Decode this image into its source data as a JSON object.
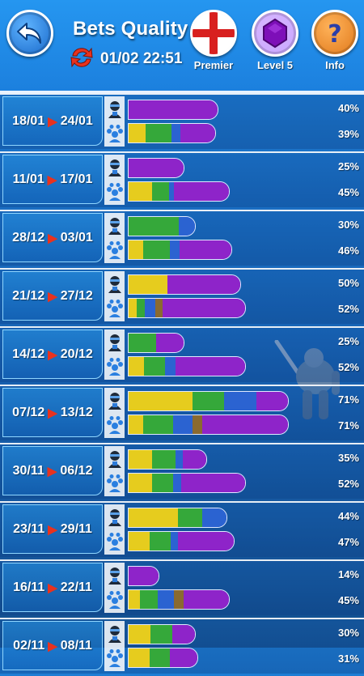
{
  "header": {
    "title": "Bets Quality",
    "datetime": "01/02 22:51",
    "buttons": {
      "back_icon": "back-arrow-icon",
      "league": "Premier",
      "league_icon": "england-flag-icon",
      "level": "Level 5",
      "level_icon": "purple-gem-icon",
      "info": "Info",
      "info_icon": "question-mark-icon",
      "refresh_icon": "refresh-icon"
    }
  },
  "legend_colors": {
    "yellow": "#e6cc1e",
    "green": "#35a83a",
    "blue": "#2b63d1",
    "brown": "#8a6a30",
    "purple": "#8e24c9"
  },
  "weeks": [
    {
      "from": "18/01",
      "to": "24/01",
      "user_pct": "40%",
      "crowd_pct": "39%",
      "user_bar": [
        {
          "c": "purple",
          "w": 100
        }
      ],
      "user_len": 0.4,
      "crowd_bar": [
        {
          "c": "yellow",
          "w": 20
        },
        {
          "c": "green",
          "w": 30
        },
        {
          "c": "blue",
          "w": 10
        },
        {
          "c": "purple",
          "w": 40
        }
      ],
      "crowd_len": 0.39
    },
    {
      "from": "11/01",
      "to": "17/01",
      "user_pct": "25%",
      "crowd_pct": "45%",
      "user_bar": [
        {
          "c": "purple",
          "w": 100
        }
      ],
      "user_len": 0.25,
      "crowd_bar": [
        {
          "c": "yellow",
          "w": 23
        },
        {
          "c": "green",
          "w": 17
        },
        {
          "c": "blue",
          "w": 5
        },
        {
          "c": "purple",
          "w": 55
        }
      ],
      "crowd_len": 0.45
    },
    {
      "from": "28/12",
      "to": "03/01",
      "user_pct": "30%",
      "crowd_pct": "46%",
      "user_bar": [
        {
          "c": "green",
          "w": 75
        },
        {
          "c": "blue",
          "w": 25
        }
      ],
      "user_len": 0.3,
      "crowd_bar": [
        {
          "c": "yellow",
          "w": 14
        },
        {
          "c": "green",
          "w": 26
        },
        {
          "c": "blue",
          "w": 10
        },
        {
          "c": "purple",
          "w": 50
        }
      ],
      "crowd_len": 0.46
    },
    {
      "from": "21/12",
      "to": "27/12",
      "user_pct": "50%",
      "crowd_pct": "52%",
      "user_bar": [
        {
          "c": "yellow",
          "w": 35
        },
        {
          "c": "purple",
          "w": 65
        }
      ],
      "user_len": 0.5,
      "crowd_bar": [
        {
          "c": "yellow",
          "w": 7
        },
        {
          "c": "green",
          "w": 7
        },
        {
          "c": "blue",
          "w": 9
        },
        {
          "c": "brown",
          "w": 6
        },
        {
          "c": "purple",
          "w": 71
        }
      ],
      "crowd_len": 0.52
    },
    {
      "from": "14/12",
      "to": "20/12",
      "user_pct": "25%",
      "crowd_pct": "52%",
      "user_bar": [
        {
          "c": "green",
          "w": 50
        },
        {
          "c": "purple",
          "w": 50
        }
      ],
      "user_len": 0.25,
      "crowd_bar": [
        {
          "c": "yellow",
          "w": 13
        },
        {
          "c": "green",
          "w": 18
        },
        {
          "c": "blue",
          "w": 9
        },
        {
          "c": "purple",
          "w": 60
        }
      ],
      "crowd_len": 0.52
    },
    {
      "from": "07/12",
      "to": "13/12",
      "user_pct": "71%",
      "crowd_pct": "71%",
      "user_bar": [
        {
          "c": "yellow",
          "w": 40
        },
        {
          "c": "green",
          "w": 20
        },
        {
          "c": "blue",
          "w": 20
        },
        {
          "c": "purple",
          "w": 20
        }
      ],
      "user_len": 0.71,
      "crowd_bar": [
        {
          "c": "yellow",
          "w": 9
        },
        {
          "c": "green",
          "w": 19
        },
        {
          "c": "blue",
          "w": 12
        },
        {
          "c": "brown",
          "w": 6
        },
        {
          "c": "purple",
          "w": 54
        }
      ],
      "crowd_len": 0.71
    },
    {
      "from": "30/11",
      "to": "06/12",
      "user_pct": "35%",
      "crowd_pct": "52%",
      "user_bar": [
        {
          "c": "yellow",
          "w": 30
        },
        {
          "c": "green",
          "w": 30
        },
        {
          "c": "blue",
          "w": 10
        },
        {
          "c": "purple",
          "w": 30
        }
      ],
      "user_len": 0.35,
      "crowd_bar": [
        {
          "c": "yellow",
          "w": 20
        },
        {
          "c": "green",
          "w": 18
        },
        {
          "c": "blue",
          "w": 7
        },
        {
          "c": "purple",
          "w": 55
        }
      ],
      "crowd_len": 0.52
    },
    {
      "from": "23/11",
      "to": "29/11",
      "user_pct": "44%",
      "crowd_pct": "47%",
      "user_bar": [
        {
          "c": "yellow",
          "w": 50
        },
        {
          "c": "green",
          "w": 25
        },
        {
          "c": "blue",
          "w": 25
        }
      ],
      "user_len": 0.44,
      "crowd_bar": [
        {
          "c": "yellow",
          "w": 20
        },
        {
          "c": "green",
          "w": 20
        },
        {
          "c": "blue",
          "w": 7
        },
        {
          "c": "purple",
          "w": 53
        }
      ],
      "crowd_len": 0.47
    },
    {
      "from": "16/11",
      "to": "22/11",
      "user_pct": "14%",
      "crowd_pct": "45%",
      "user_bar": [
        {
          "c": "purple",
          "w": 100
        }
      ],
      "user_len": 0.14,
      "crowd_bar": [
        {
          "c": "yellow",
          "w": 11
        },
        {
          "c": "green",
          "w": 18
        },
        {
          "c": "blue",
          "w": 16
        },
        {
          "c": "brown",
          "w": 10
        },
        {
          "c": "purple",
          "w": 45
        }
      ],
      "crowd_len": 0.45
    },
    {
      "from": "02/11",
      "to": "08/11",
      "user_pct": "30%",
      "crowd_pct": "31%",
      "user_bar": [
        {
          "c": "yellow",
          "w": 33
        },
        {
          "c": "green",
          "w": 33
        },
        {
          "c": "purple",
          "w": 34
        }
      ],
      "user_len": 0.3,
      "crowd_bar": [
        {
          "c": "yellow",
          "w": 30
        },
        {
          "c": "green",
          "w": 30
        },
        {
          "c": "purple",
          "w": 40
        }
      ],
      "crowd_len": 0.31
    }
  ],
  "row_icons": {
    "user": "ninja-user-icon",
    "crowd": "crowd-paw-icon"
  }
}
